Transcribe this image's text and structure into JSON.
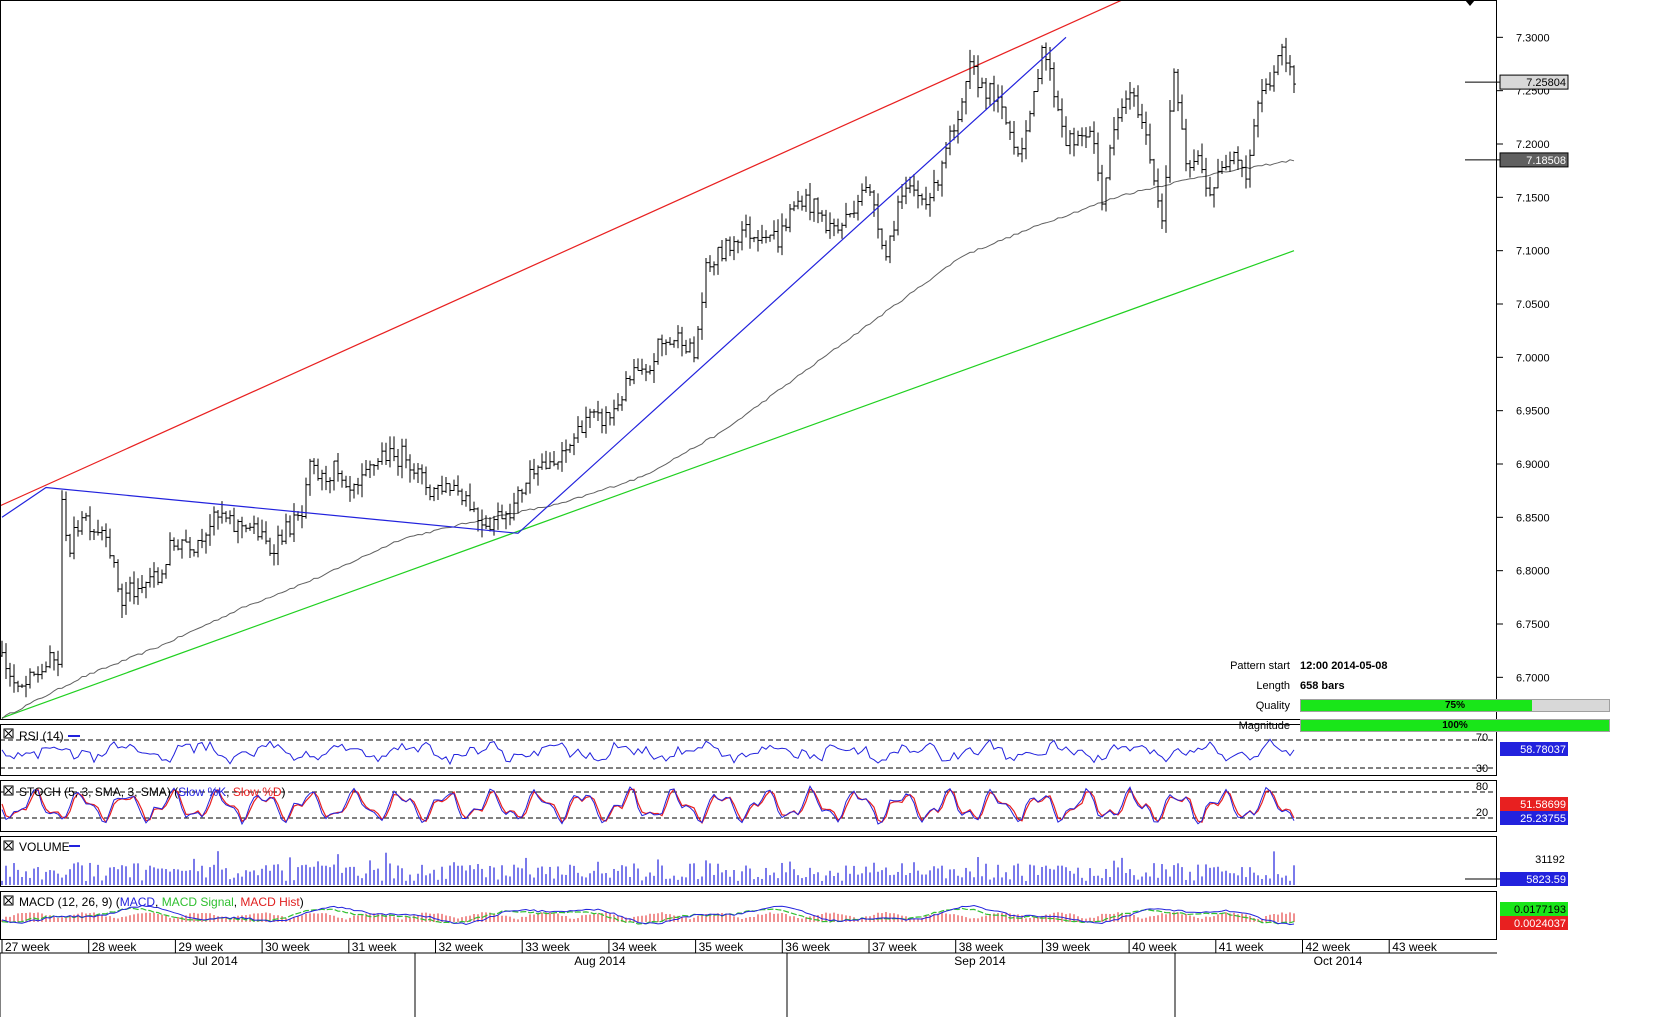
{
  "chart_data": {
    "type": "candlestick",
    "ylim": [
      6.66,
      7.335
    ],
    "y_ticks": [
      "7.3000",
      "7.2500",
      "7.2000",
      "7.1500",
      "7.1000",
      "7.0500",
      "7.0000",
      "6.9500",
      "6.9000",
      "6.8500",
      "6.8000",
      "6.7500",
      "6.7000"
    ],
    "y_tick_values": [
      7.3,
      7.25,
      7.2,
      7.15,
      7.1,
      7.05,
      7.0,
      6.95,
      6.9,
      6.85,
      6.8,
      6.75,
      6.7
    ],
    "week_labels": [
      "27 week",
      "28 week",
      "29 week",
      "30 week",
      "31 week",
      "32 week",
      "33 week",
      "34 week",
      "35 week",
      "36 week",
      "37 week",
      "38 week",
      "39 week",
      "40 week",
      "41 week",
      "42 week",
      "43 week"
    ],
    "month_labels": [
      "Jul 2014",
      "Aug 2014",
      "Sep 2014",
      "Oct 2014"
    ],
    "price_path": [
      [
        0,
        6.72
      ],
      [
        4,
        6.685
      ],
      [
        8,
        6.7
      ],
      [
        12,
        6.715
      ],
      [
        14,
        6.715
      ],
      [
        15,
        6.86
      ],
      [
        17,
        6.82
      ],
      [
        20,
        6.855
      ],
      [
        23,
        6.84
      ],
      [
        26,
        6.84
      ],
      [
        28,
        6.8
      ],
      [
        30,
        6.77
      ],
      [
        32,
        6.785
      ],
      [
        34,
        6.775
      ],
      [
        37,
        6.795
      ],
      [
        39,
        6.79
      ],
      [
        42,
        6.82
      ],
      [
        45,
        6.83
      ],
      [
        48,
        6.825
      ],
      [
        52,
        6.845
      ],
      [
        55,
        6.85
      ],
      [
        58,
        6.84
      ],
      [
        61,
        6.845
      ],
      [
        64,
        6.835
      ],
      [
        67,
        6.82
      ],
      [
        70,
        6.835
      ],
      [
        73,
        6.845
      ],
      [
        75,
        6.85
      ],
      [
        77,
        6.895
      ],
      [
        80,
        6.885
      ],
      [
        83,
        6.895
      ],
      [
        86,
        6.87
      ],
      [
        89,
        6.875
      ],
      [
        92,
        6.895
      ],
      [
        95,
        6.91
      ],
      [
        98,
        6.905
      ],
      [
        101,
        6.91
      ],
      [
        104,
        6.89
      ],
      [
        107,
        6.875
      ],
      [
        110,
        6.88
      ],
      [
        113,
        6.88
      ],
      [
        116,
        6.87
      ],
      [
        119,
        6.85
      ],
      [
        122,
        6.845
      ],
      [
        125,
        6.855
      ],
      [
        128,
        6.86
      ],
      [
        131,
        6.885
      ],
      [
        134,
        6.905
      ],
      [
        137,
        6.895
      ],
      [
        140,
        6.905
      ],
      [
        143,
        6.925
      ],
      [
        146,
        6.945
      ],
      [
        149,
        6.94
      ],
      [
        152,
        6.945
      ],
      [
        155,
        6.965
      ],
      [
        158,
        6.985
      ],
      [
        161,
        6.98
      ],
      [
        164,
        7.01
      ],
      [
        167,
        7.015
      ],
      [
        170,
        7.02
      ],
      [
        173,
        7.0
      ],
      [
        176,
        7.08
      ],
      [
        179,
        7.095
      ],
      [
        182,
        7.105
      ],
      [
        185,
        7.12
      ],
      [
        188,
        7.115
      ],
      [
        191,
        7.12
      ],
      [
        194,
        7.11
      ],
      [
        197,
        7.135
      ],
      [
        200,
        7.15
      ],
      [
        203,
        7.14
      ],
      [
        206,
        7.125
      ],
      [
        209,
        7.12
      ],
      [
        212,
        7.135
      ],
      [
        215,
        7.16
      ],
      [
        218,
        7.145
      ],
      [
        221,
        7.095
      ],
      [
        224,
        7.145
      ],
      [
        227,
        7.155
      ],
      [
        230,
        7.15
      ],
      [
        233,
        7.155
      ],
      [
        236,
        7.2
      ],
      [
        239,
        7.215
      ],
      [
        242,
        7.27
      ],
      [
        245,
        7.255
      ],
      [
        248,
        7.245
      ],
      [
        251,
        7.22
      ],
      [
        254,
        7.195
      ],
      [
        257,
        7.22
      ],
      [
        260,
        7.295
      ],
      [
        263,
        7.25
      ],
      [
        266,
        7.205
      ],
      [
        269,
        7.2
      ],
      [
        272,
        7.215
      ],
      [
        275,
        7.15
      ],
      [
        278,
        7.21
      ],
      [
        281,
        7.245
      ],
      [
        284,
        7.235
      ],
      [
        287,
        7.19
      ],
      [
        290,
        7.13
      ],
      [
        293,
        7.27
      ],
      [
        296,
        7.175
      ],
      [
        299,
        7.185
      ],
      [
        302,
        7.155
      ],
      [
        305,
        7.175
      ],
      [
        308,
        7.2
      ],
      [
        311,
        7.17
      ],
      [
        314,
        7.24
      ],
      [
        317,
        7.26
      ],
      [
        320,
        7.285
      ],
      [
        323,
        7.258
      ]
    ],
    "candle_count": 324,
    "sma_path": [
      [
        0,
        6.662
      ],
      [
        20,
        6.7
      ],
      [
        40,
        6.73
      ],
      [
        60,
        6.765
      ],
      [
        80,
        6.795
      ],
      [
        100,
        6.83
      ],
      [
        120,
        6.848
      ],
      [
        140,
        6.863
      ],
      [
        160,
        6.888
      ],
      [
        180,
        6.93
      ],
      [
        200,
        6.985
      ],
      [
        220,
        7.04
      ],
      [
        240,
        7.095
      ],
      [
        260,
        7.125
      ],
      [
        280,
        7.152
      ],
      [
        300,
        7.17
      ],
      [
        323,
        7.185
      ]
    ],
    "red_trendline": [
      [
        -1,
        6.86
      ],
      [
        280,
        7.335
      ]
    ],
    "green_trendline": [
      [
        0,
        6.662
      ],
      [
        323,
        7.1
      ]
    ],
    "blue_zigzag": [
      [
        0,
        6.85
      ],
      [
        11,
        6.878
      ],
      [
        129,
        6.835
      ],
      [
        266,
        7.3
      ]
    ],
    "price_label": "7.25804",
    "sma_label": "7.18508",
    "pattern": {
      "start_label": "Pattern start",
      "start_value": "12:00 2014-05-08",
      "length_label": "Length",
      "length_value": "658 bars",
      "quality_label": "Quality",
      "quality_value": "75%",
      "quality": 0.75,
      "magnitude_label": "Magnitude",
      "magnitude_value": "100%",
      "magnitude": 1.0
    },
    "rsi": {
      "title": "RSI (14)",
      "levels": [
        70,
        30
      ],
      "level_labels": [
        "70",
        "30"
      ],
      "value_label": "58.78037",
      "range": [
        0,
        100
      ]
    },
    "stoch": {
      "title_prefix": "STOCH (5, 3, SMA, 3, SMA)",
      "slow_k": "Slow %K",
      "slow_d": "Slow %D",
      "levels": [
        80,
        20
      ],
      "level_labels": [
        "80",
        "20"
      ],
      "k_label": "51.58699",
      "d_label": "25.23755"
    },
    "volume": {
      "title": "VOLUME",
      "max_label": "31192",
      "value_label": "5823.59"
    },
    "macd": {
      "title_prefix": "MACD (12, 26, 9)",
      "macd": "MACD",
      "signal": "MACD Signal",
      "hist": "MACD Hist",
      "macd_label": "0.0177193",
      "signal_label": "0.0024037"
    },
    "colors": {
      "red_line": "#e82020",
      "green_line": "#20d020",
      "blue_line": "#2222dd",
      "sma": "#606060",
      "stoch_k": "#2222dd",
      "stoch_d": "#e82020",
      "macd_signal": "#30c030",
      "hist": "#e02020",
      "volume": "#2222dd"
    }
  }
}
